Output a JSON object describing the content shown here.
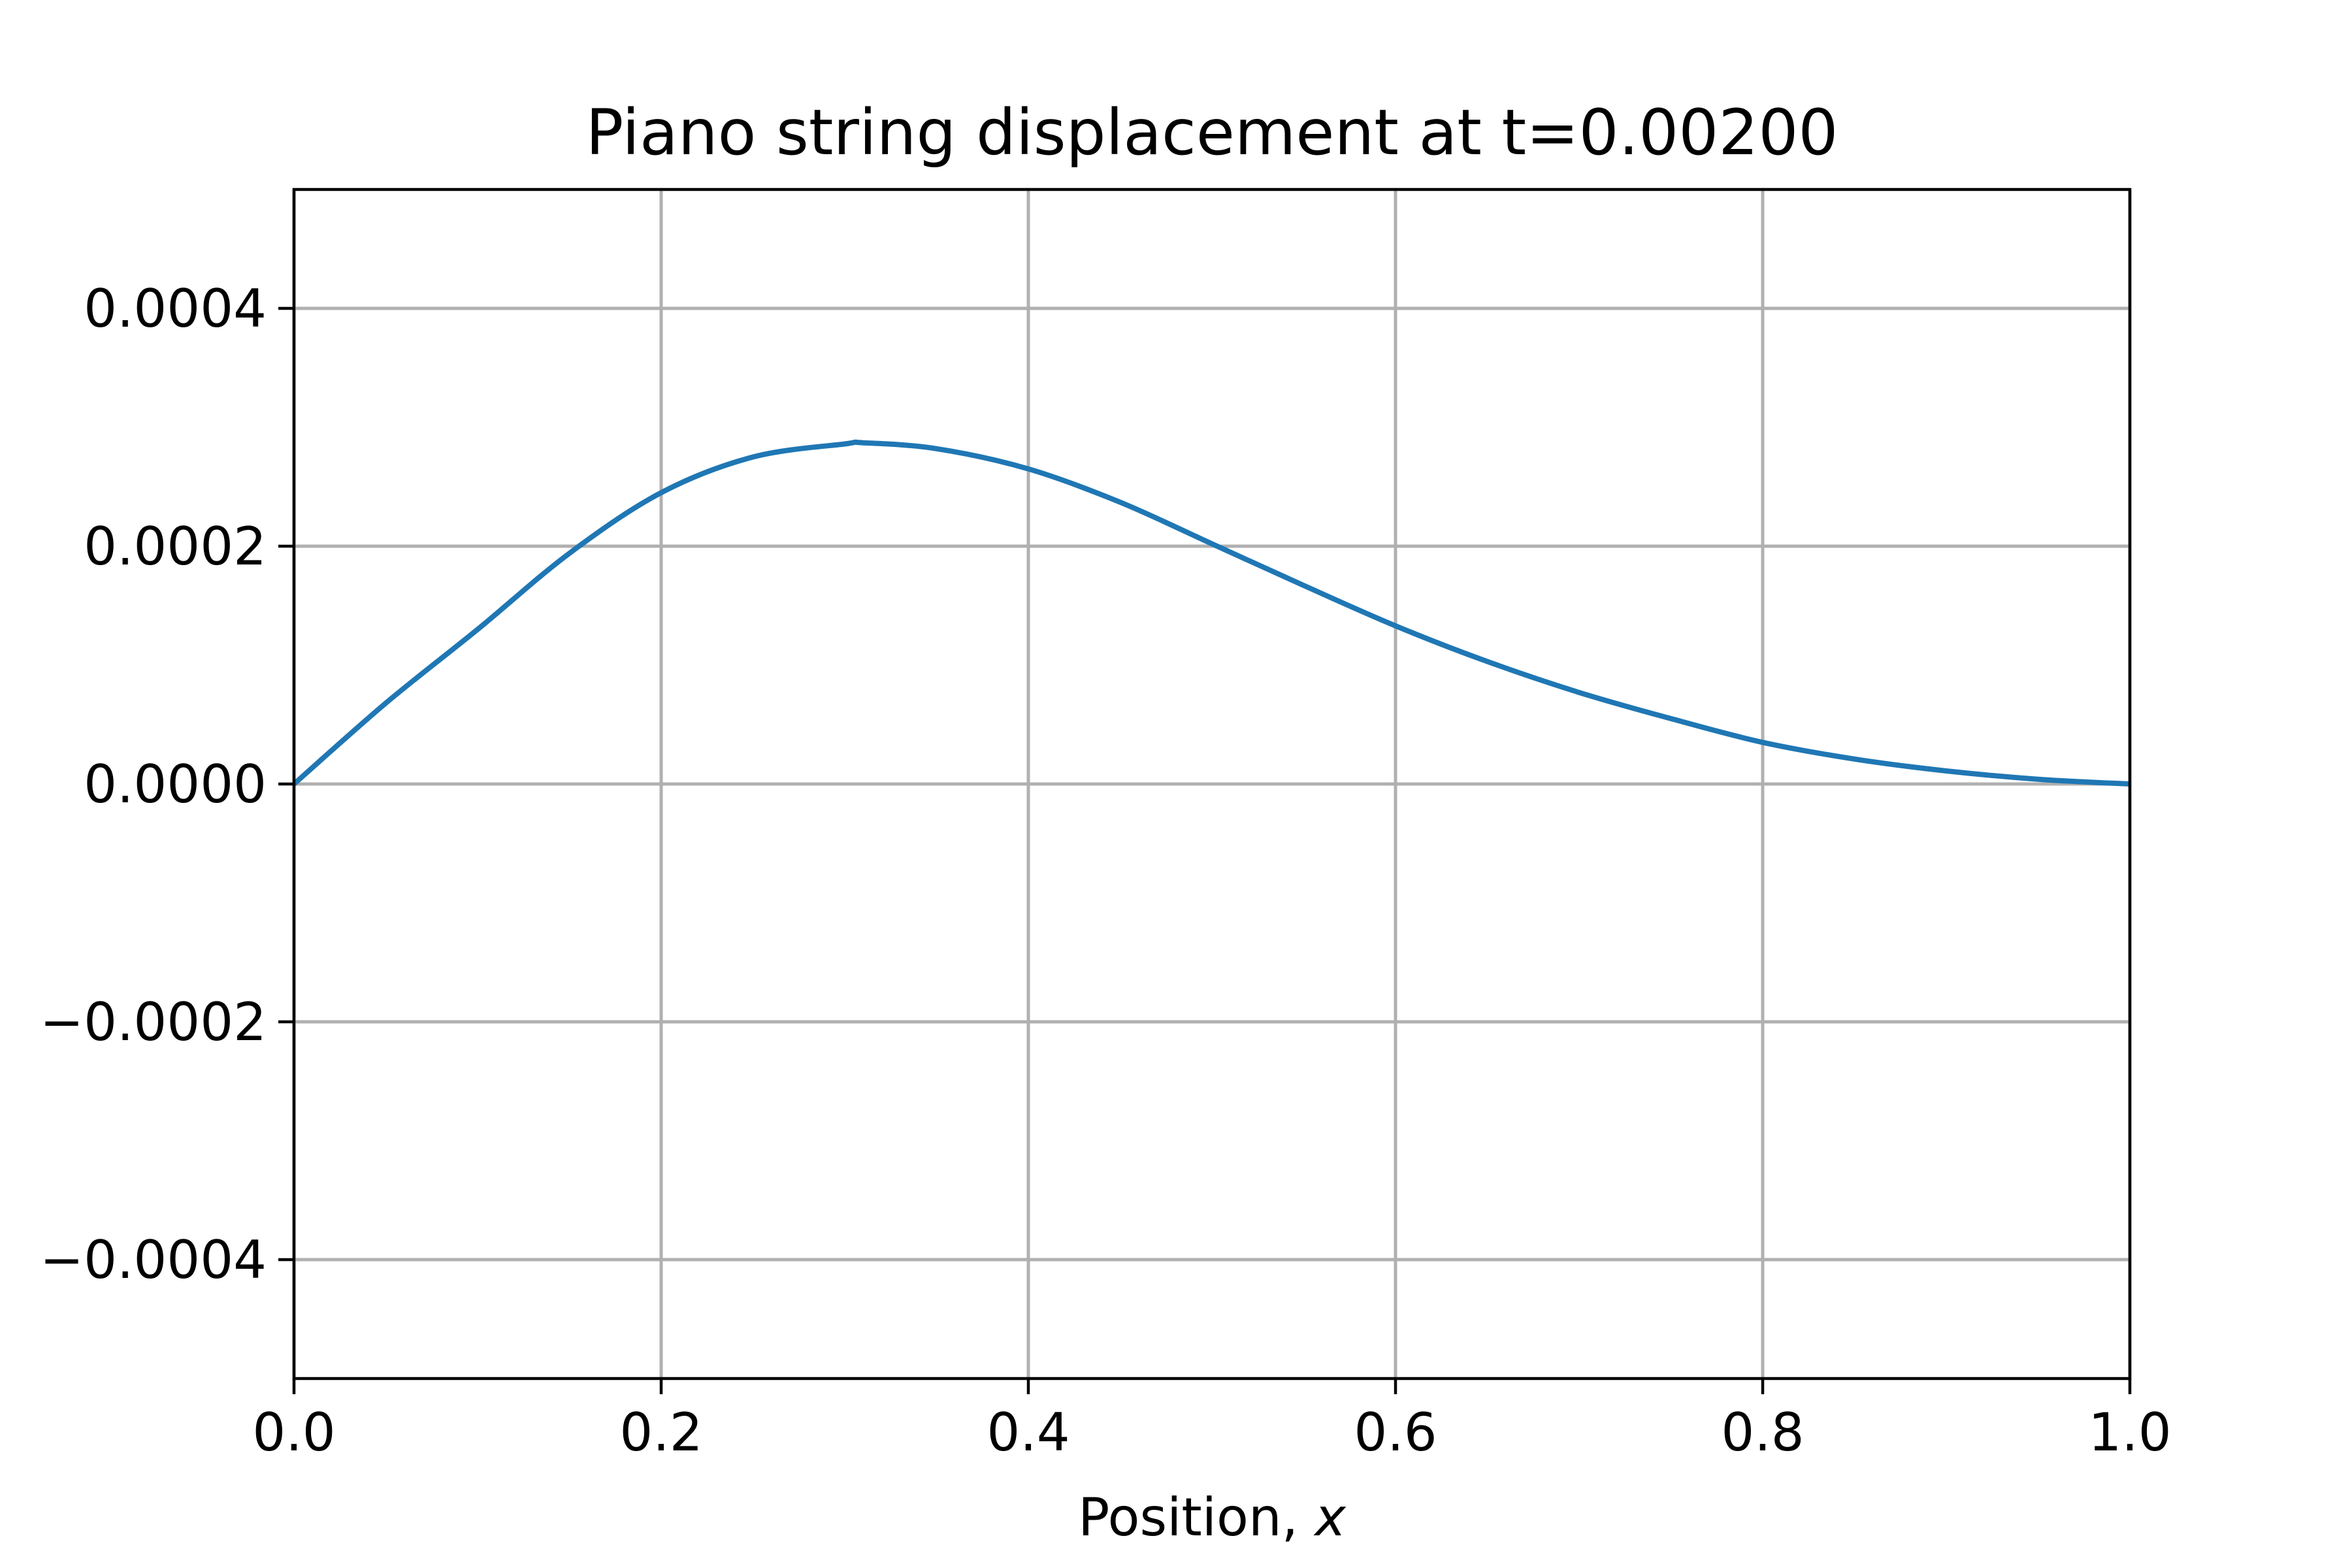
{
  "chart_data": {
    "type": "line",
    "title": "Piano string displacement at t=0.00200",
    "xlabel": "Position, ",
    "xlabel_var": "x",
    "ylabel": "",
    "xlim": [
      0.0,
      1.0
    ],
    "ylim": [
      -0.0005,
      0.0005
    ],
    "x_ticks": [
      0.0,
      0.2,
      0.4,
      0.6,
      0.8,
      1.0
    ],
    "x_tick_labels": [
      "0.0",
      "0.2",
      "0.4",
      "0.6",
      "0.8",
      "1.0"
    ],
    "y_ticks": [
      0.0004,
      0.0002,
      0.0,
      -0.0002,
      -0.0004
    ],
    "y_tick_labels": [
      "0.0004",
      "0.0002",
      "0.0000",
      "−0.0002",
      "−0.0004"
    ],
    "grid": true,
    "series": [
      {
        "color": "#1f77b4",
        "x": [
          0.0,
          0.05,
          0.1,
          0.15,
          0.2,
          0.25,
          0.3,
          0.31,
          0.35,
          0.4,
          0.45,
          0.5,
          0.55,
          0.6,
          0.65,
          0.7,
          0.75,
          0.8,
          0.85,
          0.9,
          0.95,
          1.0
        ],
        "y": [
          0.0,
          6.8e-05,
          0.00013,
          0.000194,
          0.000245,
          0.000275,
          0.000286,
          0.000287,
          0.000282,
          0.000265,
          0.000237,
          0.000202,
          0.000167,
          0.000133,
          0.000103,
          7.7e-05,
          5.5e-05,
          3.5e-05,
          2.1e-05,
          1.1e-05,
          4e-06,
          0.0
        ]
      }
    ]
  }
}
